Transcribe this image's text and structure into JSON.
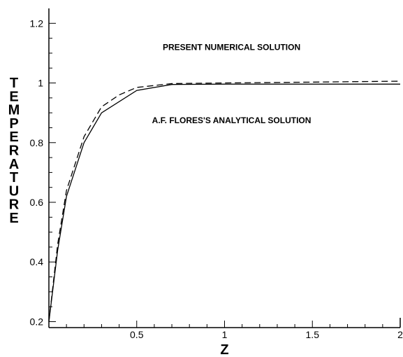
{
  "chart_data": {
    "type": "line",
    "xlabel": "Z",
    "ylabel": "TEMPERATURE",
    "xlim": [
      0,
      2
    ],
    "ylim": [
      0.18,
      1.25
    ],
    "xticks": [
      0.5,
      1,
      1.5,
      2
    ],
    "xtick_labels": [
      "0.5",
      "1",
      "1.5",
      "2"
    ],
    "yticks": [
      0.2,
      0.4,
      0.6,
      0.8,
      1,
      1.2
    ],
    "ytick_labels": [
      "0.2",
      "0.4",
      "0.6",
      "0.8",
      "1",
      "1.2"
    ],
    "grid": false,
    "legend": "none",
    "annotations": [
      {
        "text": "PRESENT NUMERICAL SOLUTION",
        "x": 1.04,
        "y": 1.11
      },
      {
        "text": "A.F. FLORES'S ANALYTICAL SOLUTION",
        "x": 1.04,
        "y": 0.865
      }
    ],
    "series": [
      {
        "style": "solid",
        "color": "#000000",
        "x": [
          0,
          0.05,
          0.1,
          0.2,
          0.3,
          0.5,
          0.7,
          1.0,
          1.5,
          2.0
        ],
        "y": [
          0.2,
          0.44,
          0.62,
          0.8,
          0.9,
          0.975,
          0.995,
          0.996,
          0.996,
          0.996
        ]
      },
      {
        "style": "dashed",
        "color": "#000000",
        "x": [
          0,
          0.05,
          0.1,
          0.2,
          0.3,
          0.4,
          0.5,
          0.7,
          1.0,
          1.5,
          2.0
        ],
        "y": [
          0.2,
          0.46,
          0.64,
          0.82,
          0.92,
          0.96,
          0.985,
          0.998,
          1.0,
          1.003,
          1.006
        ]
      }
    ]
  }
}
